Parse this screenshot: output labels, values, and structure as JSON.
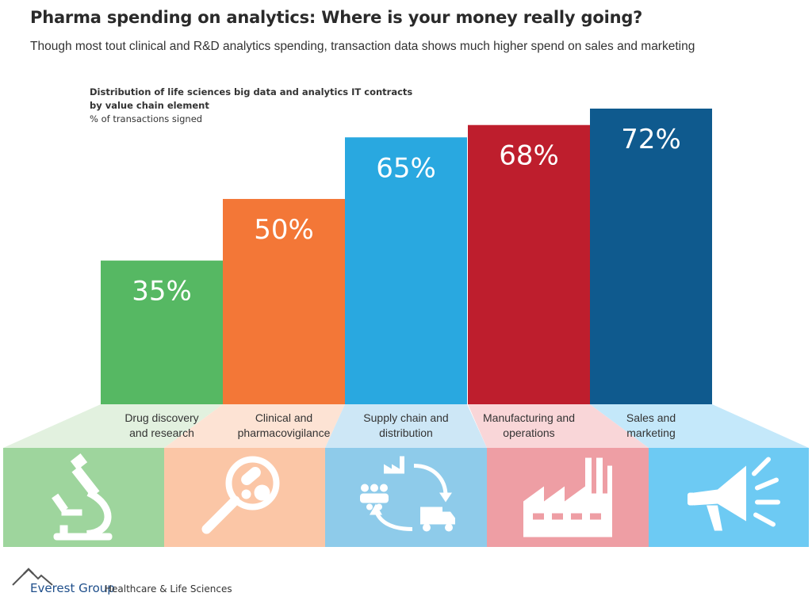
{
  "header": {
    "title": "Pharma spending on analytics: Where is your money really going?",
    "subtitle": "Though most tout clinical and R&D analytics spending, transaction data shows much higher spend on sales and marketing"
  },
  "chart_data": {
    "type": "bar",
    "title": "Distribution of life sciences big data and analytics IT contracts by value chain element",
    "title_lines": [
      "Distribution of life sciences big data and analytics IT contracts",
      "by value chain element"
    ],
    "ylabel": "% of transactions signed",
    "categories": [
      "Drug discovery and research",
      "Clinical and pharmacovigilance",
      "Supply chain and distribution",
      "Manufacturing and operations",
      "Sales and marketing"
    ],
    "category_lines": [
      [
        "Drug discovery",
        "and research"
      ],
      [
        "Clinical and",
        "pharmacovigilance"
      ],
      [
        "Supply chain and",
        "distribution"
      ],
      [
        "Manufacturing and",
        "operations"
      ],
      [
        "Sales and",
        "marketing"
      ]
    ],
    "values": [
      35,
      50,
      65,
      68,
      72
    ],
    "value_labels": [
      "35%",
      "50%",
      "65%",
      "68%",
      "72%"
    ],
    "ylim": [
      0,
      72
    ],
    "grid": false,
    "colors": [
      "#56b863",
      "#f37737",
      "#29a8e0",
      "#be1e2d",
      "#0f5a8e"
    ],
    "light_colors": [
      "#9ed59d",
      "#fbc6a6",
      "#8ecbea",
      "#ee9ea4",
      "#6dcaf3"
    ],
    "pale_colors": [
      "#e2f1df",
      "#fde3d4",
      "#cde7f6",
      "#f9d6d8",
      "#c4e8fa"
    ],
    "icons": [
      "microscope-icon",
      "magnifier-pills-icon",
      "supply-chain-cycle-icon",
      "factory-icon",
      "megaphone-icon"
    ]
  },
  "footer": {
    "brand": "Everest Group",
    "division": "Healthcare & Life Sciences"
  }
}
